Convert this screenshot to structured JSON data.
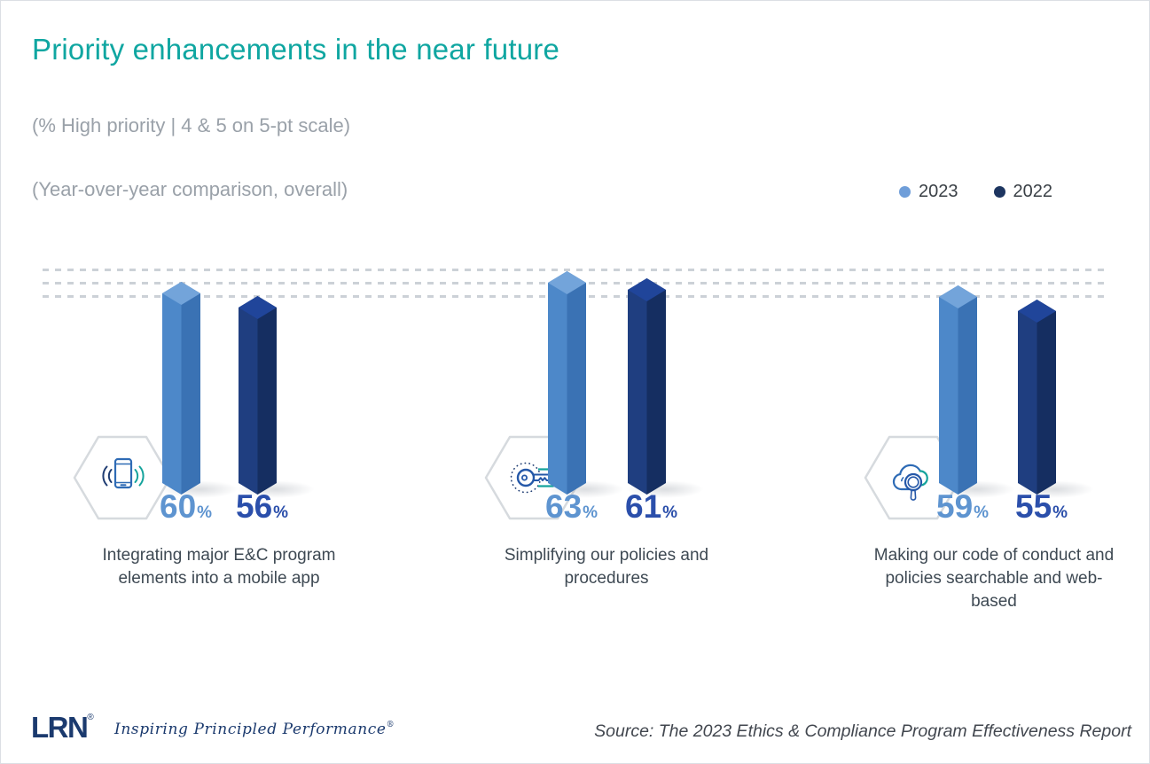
{
  "header": {
    "title": "Priority enhancements in the near future",
    "title_color": "#0fa6a1",
    "subtitle_scale": "(% High priority | 4 & 5 on 5-pt scale)",
    "subtitle_comparison": "(Year-over-year comparison, overall)"
  },
  "legend": {
    "position": "top-right",
    "items": [
      {
        "label": "2023",
        "color": "#6f9ed9"
      },
      {
        "label": "2022",
        "color": "#1d3560"
      }
    ]
  },
  "chart_data": {
    "type": "bar",
    "title": "Priority enhancements in the near future",
    "subtitle": "(% High priority | 4 & 5 on 5-pt scale) (Year-over-year comparison, overall)",
    "unit": "%",
    "ylim": [
      0,
      100
    ],
    "grid": "three dashed horizontal reference lines near top, no visible axes",
    "legend_position": "top-right",
    "bar_style": "3D isometric columns",
    "categories": [
      "Integrating major E&C program elements into a mobile app",
      "Simplifying our policies and procedures",
      "Making our code of conduct and policies searchable and web-based"
    ],
    "icons": [
      "vibrating-mobile-phone-icon",
      "key-icon",
      "cloud-search-icon"
    ],
    "series": [
      {
        "name": "2023",
        "values": [
          60,
          63,
          59
        ]
      },
      {
        "name": "2022",
        "values": [
          56,
          61,
          55
        ]
      }
    ],
    "bar_styles": {
      "2023": {
        "front": "#4d88c9",
        "side": "#3a72b4",
        "top": "#73a4da",
        "value_color": "#5e94d0"
      },
      "2022": {
        "front": "#1f3e80",
        "side": "#152e61",
        "top": "#20459a",
        "value_color": "#2b4fab"
      }
    },
    "accent_colors": {
      "teal": "#0fa6a1",
      "navy": "#1b3a6e",
      "icon_blue": "#2e6bb5",
      "icon_teal": "#14a39c"
    }
  },
  "footer": {
    "logo_text": "LRN",
    "logo_reg": "®",
    "tagline": "Inspiring Principled Performance",
    "tagline_mark": "®",
    "source": "Source: The 2023 Ethics & Compliance Program Effectiveness Report"
  }
}
